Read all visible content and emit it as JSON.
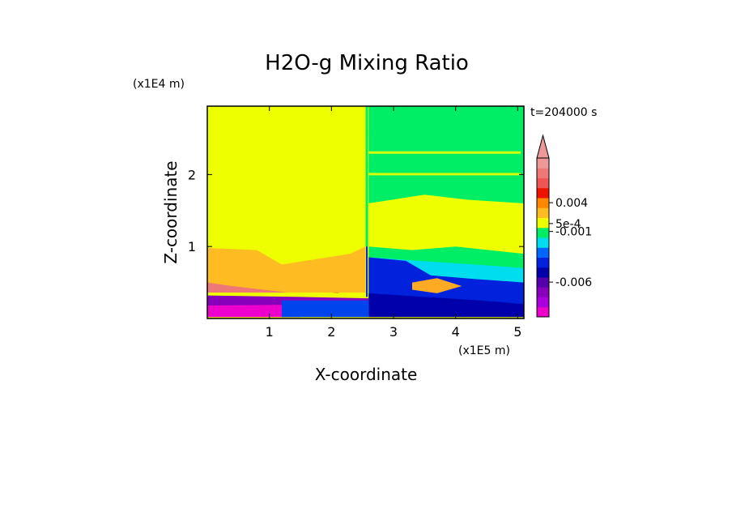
{
  "chart_data": {
    "type": "heatmap",
    "title": "H2O-g Mixing Ratio",
    "xlabel": "X-coordinate",
    "ylabel": "Z-coordinate",
    "x_unit": "(x1E5 m)",
    "y_unit": "(x1E4 m)",
    "time_label": "t=204000 s",
    "xlim": [
      0,
      5.1
    ],
    "ylim": [
      0,
      2.95
    ],
    "x_ticks": [
      1,
      2,
      3,
      4,
      5
    ],
    "x_tick_labels": [
      "1",
      "2",
      "3",
      "4",
      "5"
    ],
    "y_ticks": [
      1,
      2
    ],
    "y_tick_labels": [
      "1",
      "2"
    ],
    "background_color": "#eeff00",
    "regions": [
      {
        "level": "low_red_band",
        "color": "#ee1100",
        "polygon": [
          [
            0,
            0.55
          ],
          [
            0.35,
            0.6
          ],
          [
            1.1,
            0.62
          ],
          [
            1.5,
            0.48
          ],
          [
            1.6,
            0.36
          ],
          [
            0,
            0.36
          ]
        ]
      },
      {
        "level": "orange_band",
        "color": "#ff8800",
        "polygon": [
          [
            0,
            0.75
          ],
          [
            0.6,
            0.72
          ],
          [
            1.4,
            0.6
          ],
          [
            1.6,
            0.4
          ],
          [
            2.1,
            0.35
          ],
          [
            2.5,
            0.5
          ],
          [
            2.55,
            0.36
          ],
          [
            0,
            0.36
          ]
        ]
      },
      {
        "level": "light_orange_band",
        "color": "#ffbb22",
        "polygon": [
          [
            0,
            0.98
          ],
          [
            0.8,
            0.95
          ],
          [
            1.2,
            0.75
          ],
          [
            2.3,
            0.9
          ],
          [
            2.55,
            1.0
          ],
          [
            2.55,
            0.36
          ],
          [
            0,
            0.36
          ]
        ]
      },
      {
        "level": "pink_lower",
        "color": "#ee7777",
        "polygon": [
          [
            0,
            0.5
          ],
          [
            0.4,
            0.45
          ],
          [
            0.9,
            0.4
          ],
          [
            1.3,
            0.36
          ],
          [
            0,
            0.36
          ]
        ]
      },
      {
        "level": "green_upper",
        "color": "#00ee66",
        "polygon": [
          [
            2.6,
            2.95
          ],
          [
            5.1,
            2.95
          ],
          [
            5.1,
            1.6
          ],
          [
            4.2,
            1.65
          ],
          [
            3.5,
            1.72
          ],
          [
            2.6,
            1.6
          ]
        ]
      },
      {
        "level": "green_lower",
        "color": "#00ee66",
        "polygon": [
          [
            2.6,
            1.0
          ],
          [
            3.3,
            0.95
          ],
          [
            4.0,
            1.0
          ],
          [
            5.1,
            0.9
          ],
          [
            5.1,
            0.15
          ],
          [
            2.6,
            0.15
          ]
        ]
      },
      {
        "level": "cyan",
        "color": "#00ddee",
        "polygon": [
          [
            2.65,
            0.85
          ],
          [
            3.4,
            0.8
          ],
          [
            4.3,
            0.75
          ],
          [
            5.1,
            0.7
          ],
          [
            5.1,
            0.15
          ],
          [
            2.65,
            0.15
          ]
        ]
      },
      {
        "level": "blue",
        "color": "#0022dd",
        "polygon": [
          [
            2.6,
            0.85
          ],
          [
            3.2,
            0.8
          ],
          [
            3.6,
            0.6
          ],
          [
            4.3,
            0.55
          ],
          [
            5.1,
            0.5
          ],
          [
            5.1,
            0.05
          ],
          [
            2.6,
            0.05
          ]
        ]
      },
      {
        "level": "blue_core_orange",
        "color": "#ffaa22",
        "polygon": [
          [
            3.3,
            0.5
          ],
          [
            3.7,
            0.56
          ],
          [
            4.1,
            0.45
          ],
          [
            3.7,
            0.35
          ],
          [
            3.3,
            0.4
          ]
        ]
      },
      {
        "level": "navy",
        "color": "#0000aa",
        "polygon": [
          [
            2.6,
            0.35
          ],
          [
            3.5,
            0.3
          ],
          [
            4.4,
            0.25
          ],
          [
            5.1,
            0.2
          ],
          [
            5.1,
            0.02
          ],
          [
            2.6,
            0.02
          ]
        ]
      },
      {
        "level": "magenta_low",
        "color": "#ee00cc",
        "polygon": [
          [
            0,
            0.27
          ],
          [
            1.0,
            0.25
          ],
          [
            1.5,
            0.2
          ],
          [
            1.5,
            0.02
          ],
          [
            0,
            0.02
          ]
        ]
      },
      {
        "level": "purple_low",
        "color": "#8800bb",
        "polygon": [
          [
            0,
            0.32
          ],
          [
            1.5,
            0.3
          ],
          [
            2.6,
            0.28
          ],
          [
            2.6,
            0.2
          ],
          [
            0,
            0.18
          ]
        ]
      },
      {
        "level": "blue_strip_left",
        "color": "#0044ee",
        "polygon": [
          [
            1.2,
            0.25
          ],
          [
            2.6,
            0.25
          ],
          [
            2.6,
            0.02
          ],
          [
            1.2,
            0.02
          ]
        ]
      }
    ],
    "colorbar": {
      "colors": [
        "#ee00cc",
        "#aa00dd",
        "#8800bb",
        "#5500aa",
        "#0000aa",
        "#0022dd",
        "#0066ff",
        "#00ddee",
        "#00ee66",
        "#eeff00",
        "#ffbb22",
        "#ff8800",
        "#ee1100",
        "#ee5555",
        "#ee7777",
        "#ee9999"
      ],
      "tick_labels": [
        "0.004",
        "5e-4",
        "-0.001",
        "-0.006"
      ],
      "tick_levels": [
        11.5,
        9.4,
        8.6,
        3.5
      ]
    }
  }
}
